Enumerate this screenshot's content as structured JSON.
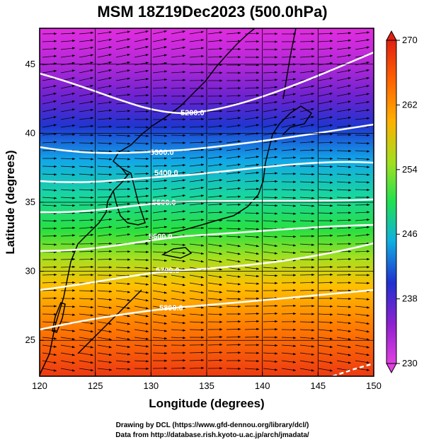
{
  "title": "MSM 18Z19Dec2023 (500.0hPa)",
  "xlabel": "Longitude (degrees)",
  "ylabel": "Latitude  (degrees)",
  "credits": [
    "Drawing by DCL (https://www.gfd-dennou.org/library/dcl/)",
    "Data from http://database.rish.kyoto-u.ac.jp/arch/jmadata/"
  ],
  "map": {
    "lon_range": [
      120,
      150
    ],
    "lat_range": [
      22.4,
      47.6
    ],
    "lon_ticks": [
      "120",
      "125",
      "130",
      "135",
      "140",
      "145",
      "150"
    ],
    "lat_ticks": [
      "25",
      "30",
      "35",
      "40",
      "45"
    ],
    "grid": true,
    "colorbar": {
      "ticks": [
        "230",
        "238",
        "246",
        "254",
        "262",
        "270"
      ],
      "min": 230,
      "max": 270,
      "colors": [
        "#e040e0",
        "#9020d0",
        "#2030d0",
        "#10b0e0",
        "#20e050",
        "#a0e020",
        "#ffb000",
        "#ff6000",
        "#e02010"
      ]
    },
    "contours": [
      {
        "label": "5200.0"
      },
      {
        "label": "5300.0"
      },
      {
        "label": "5400.0"
      },
      {
        "label": "5500.0"
      },
      {
        "label": "5600.0"
      },
      {
        "label": "5700.0"
      },
      {
        "label": "5800.0"
      }
    ]
  }
}
